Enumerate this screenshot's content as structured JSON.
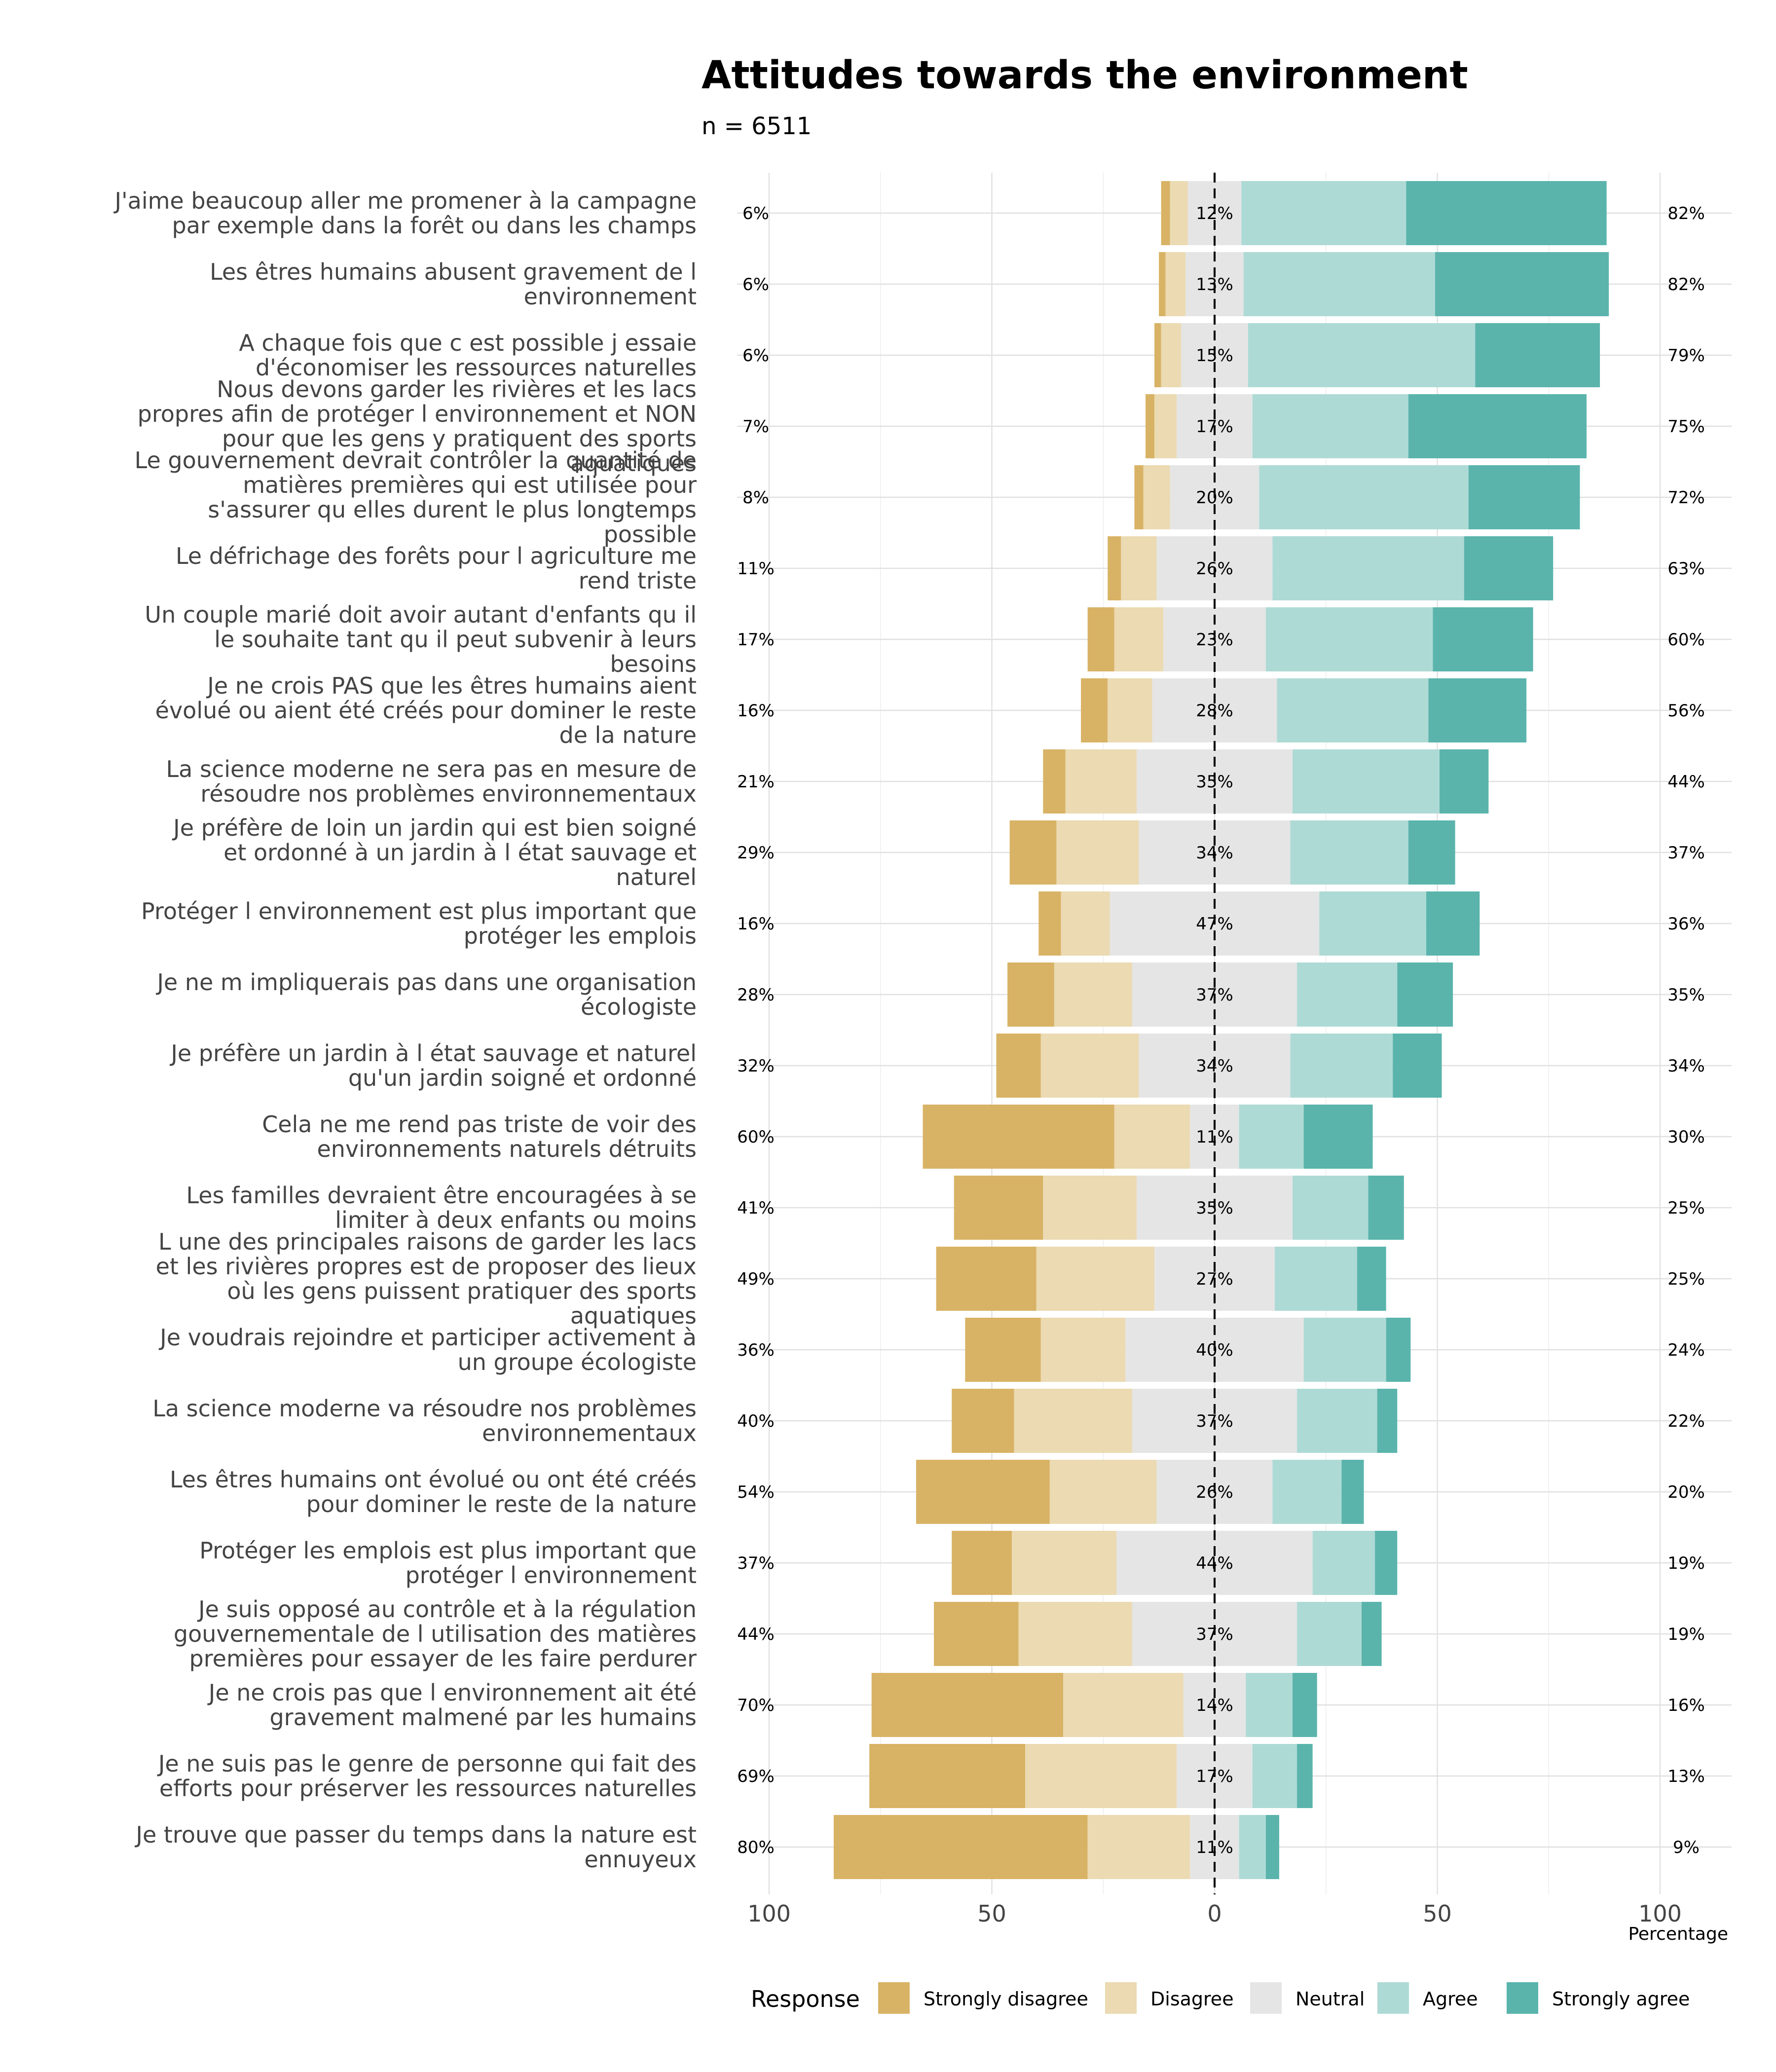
{
  "chart_data": {
    "type": "bar",
    "orientation": "horizontal-diverging-stacked",
    "title": "Attitudes towards the environment",
    "subtitle": "n = 6511",
    "xlabel": "Percentage",
    "ylabel": "",
    "xlim": [
      -100,
      100
    ],
    "x_ticks": [
      "100",
      "50",
      "0",
      "50",
      "100"
    ],
    "x_tick_values": [
      -100,
      -50,
      0,
      50,
      100
    ],
    "grid": true,
    "legend_position": "bottom",
    "legend_title": "Response",
    "responses": [
      "Strongly disagree",
      "Disagree",
      "Neutral",
      "Agree",
      "Strongly agree"
    ],
    "colors": [
      "#d8b365",
      "#ebdab2",
      "#e5e5e5",
      "#aedad5",
      "#5ab4ac"
    ],
    "items": [
      {
        "label": [
          "J'aime beaucoup aller me promener à la campagne",
          "par exemple dans la forêt ou dans les champs"
        ],
        "values": [
          2,
          4,
          12,
          37,
          45
        ],
        "left_label": "6%",
        "neutral_label": "12%",
        "right_label": "82%"
      },
      {
        "label": [
          "Les êtres humains abusent gravement de l",
          "environnement"
        ],
        "values": [
          1.5,
          4.5,
          13,
          43,
          39
        ],
        "left_label": "6%",
        "neutral_label": "13%",
        "right_label": "82%"
      },
      {
        "label": [
          "A chaque fois que c est possible j essaie",
          "d'économiser les ressources naturelles"
        ],
        "values": [
          1.5,
          4.5,
          15,
          51,
          28
        ],
        "left_label": "6%",
        "neutral_label": "15%",
        "right_label": "79%"
      },
      {
        "label": [
          "Nous devons garder les rivières et les lacs",
          "propres afin de protéger l environnement et NON",
          "pour que les gens y pratiquent des sports",
          "aquatiques"
        ],
        "values": [
          2,
          5,
          17,
          35,
          40
        ],
        "left_label": "7%",
        "neutral_label": "17%",
        "right_label": "75%"
      },
      {
        "label": [
          "Le gouvernement devrait contrôler la quantité de",
          "matières premières qui est utilisée pour",
          "s'assurer qu elles durent le plus longtemps",
          "possible"
        ],
        "values": [
          2,
          6,
          20,
          47,
          25
        ],
        "left_label": "8%",
        "neutral_label": "20%",
        "right_label": "72%"
      },
      {
        "label": [
          "Le défrichage des forêts pour l agriculture me",
          "rend triste"
        ],
        "values": [
          3,
          8,
          26,
          43,
          20
        ],
        "left_label": "11%",
        "neutral_label": "26%",
        "right_label": "63%"
      },
      {
        "label": [
          "Un couple marié doit avoir autant d'enfants qu il",
          "le souhaite tant qu il peut subvenir à leurs",
          "besoins"
        ],
        "values": [
          6,
          11,
          23,
          37.5,
          22.5
        ],
        "left_label": "17%",
        "neutral_label": "23%",
        "right_label": "60%"
      },
      {
        "label": [
          "Je ne crois PAS que les êtres humains aient",
          "évolué ou aient été créés pour dominer le reste",
          "de la nature"
        ],
        "values": [
          6,
          10,
          28,
          34,
          22
        ],
        "left_label": "16%",
        "neutral_label": "28%",
        "right_label": "56%"
      },
      {
        "label": [
          "La science moderne ne sera pas en mesure de",
          "résoudre nos problèmes environnementaux"
        ],
        "values": [
          5,
          16,
          35,
          33,
          11
        ],
        "left_label": "21%",
        "neutral_label": "35%",
        "right_label": "44%"
      },
      {
        "label": [
          "Je préfère de loin un jardin qui est bien soigné",
          "et ordonné à un jardin à l état sauvage et",
          "naturel"
        ],
        "values": [
          10.5,
          18.5,
          34,
          26.5,
          10.5
        ],
        "left_label": "29%",
        "neutral_label": "34%",
        "right_label": "37%"
      },
      {
        "label": [
          "Protéger l environnement est plus important que",
          "protéger les emplois"
        ],
        "values": [
          5,
          11,
          47,
          24,
          12
        ],
        "left_label": "16%",
        "neutral_label": "47%",
        "right_label": "36%"
      },
      {
        "label": [
          "Je ne m impliquerais pas dans une organisation",
          "écologiste"
        ],
        "values": [
          10.5,
          17.5,
          37,
          22.5,
          12.5
        ],
        "left_label": "28%",
        "neutral_label": "37%",
        "right_label": "35%"
      },
      {
        "label": [
          "Je préfère un jardin à l état sauvage et naturel",
          "qu'un jardin soigné et ordonné"
        ],
        "values": [
          10,
          22,
          34,
          23,
          11
        ],
        "left_label": "32%",
        "neutral_label": "34%",
        "right_label": "34%"
      },
      {
        "label": [
          "Cela ne me rend pas triste de voir des",
          "environnements naturels détruits"
        ],
        "values": [
          43,
          17,
          11,
          14.5,
          15.5
        ],
        "left_label": "60%",
        "neutral_label": "11%",
        "right_label": "30%"
      },
      {
        "label": [
          "Les familles devraient être encouragées à se",
          "limiter à deux enfants ou moins"
        ],
        "values": [
          20,
          21,
          35,
          17,
          8
        ],
        "left_label": "41%",
        "neutral_label": "35%",
        "right_label": "25%"
      },
      {
        "label": [
          "L une des principales raisons de garder les lacs",
          "et les rivières propres est de proposer des lieux",
          "où les gens puissent pratiquer des sports",
          "aquatiques"
        ],
        "values": [
          22.5,
          26.5,
          27,
          18.5,
          6.5
        ],
        "left_label": "49%",
        "neutral_label": "27%",
        "right_label": "25%"
      },
      {
        "label": [
          "Je voudrais rejoindre et participer activement à",
          "un groupe écologiste"
        ],
        "values": [
          17,
          19,
          40,
          18.5,
          5.5
        ],
        "left_label": "36%",
        "neutral_label": "40%",
        "right_label": "24%"
      },
      {
        "label": [
          "La science moderne va résoudre nos problèmes",
          "environnementaux"
        ],
        "values": [
          14,
          26.5,
          37,
          18,
          4.5
        ],
        "left_label": "40%",
        "neutral_label": "37%",
        "right_label": "22%"
      },
      {
        "label": [
          "Les êtres humains ont évolué ou ont été créés",
          "pour dominer le reste de la nature"
        ],
        "values": [
          30,
          24,
          26,
          15.5,
          5
        ],
        "left_label": "54%",
        "neutral_label": "26%",
        "right_label": "20%"
      },
      {
        "label": [
          "Protéger les emplois est plus important que",
          "protéger l environnement"
        ],
        "values": [
          13.5,
          23.5,
          44,
          14,
          5
        ],
        "left_label": "37%",
        "neutral_label": "44%",
        "right_label": "19%"
      },
      {
        "label": [
          "Je suis opposé au contrôle et à la régulation",
          "gouvernementale de l utilisation des matières",
          "premières pour essayer de les faire perdurer"
        ],
        "values": [
          19,
          25.5,
          37,
          14.5,
          4.5
        ],
        "left_label": "44%",
        "neutral_label": "37%",
        "right_label": "19%"
      },
      {
        "label": [
          "Je ne crois pas que l environnement ait été",
          "gravement malmené par les humains"
        ],
        "values": [
          43,
          27,
          14,
          10.5,
          5.5
        ],
        "left_label": "70%",
        "neutral_label": "14%",
        "right_label": "16%"
      },
      {
        "label": [
          "Je ne suis pas le genre de personne qui fait des",
          "efforts pour préserver les ressources naturelles"
        ],
        "values": [
          35,
          34,
          17,
          10,
          3.5
        ],
        "left_label": "69%",
        "neutral_label": "17%",
        "right_label": "13%"
      },
      {
        "label": [
          "Je trouve que passer du temps dans la nature est",
          "ennuyeux"
        ],
        "values": [
          57,
          23,
          11,
          6,
          3
        ],
        "left_label": "80%",
        "neutral_label": "11%",
        "right_label": "9%"
      }
    ]
  }
}
